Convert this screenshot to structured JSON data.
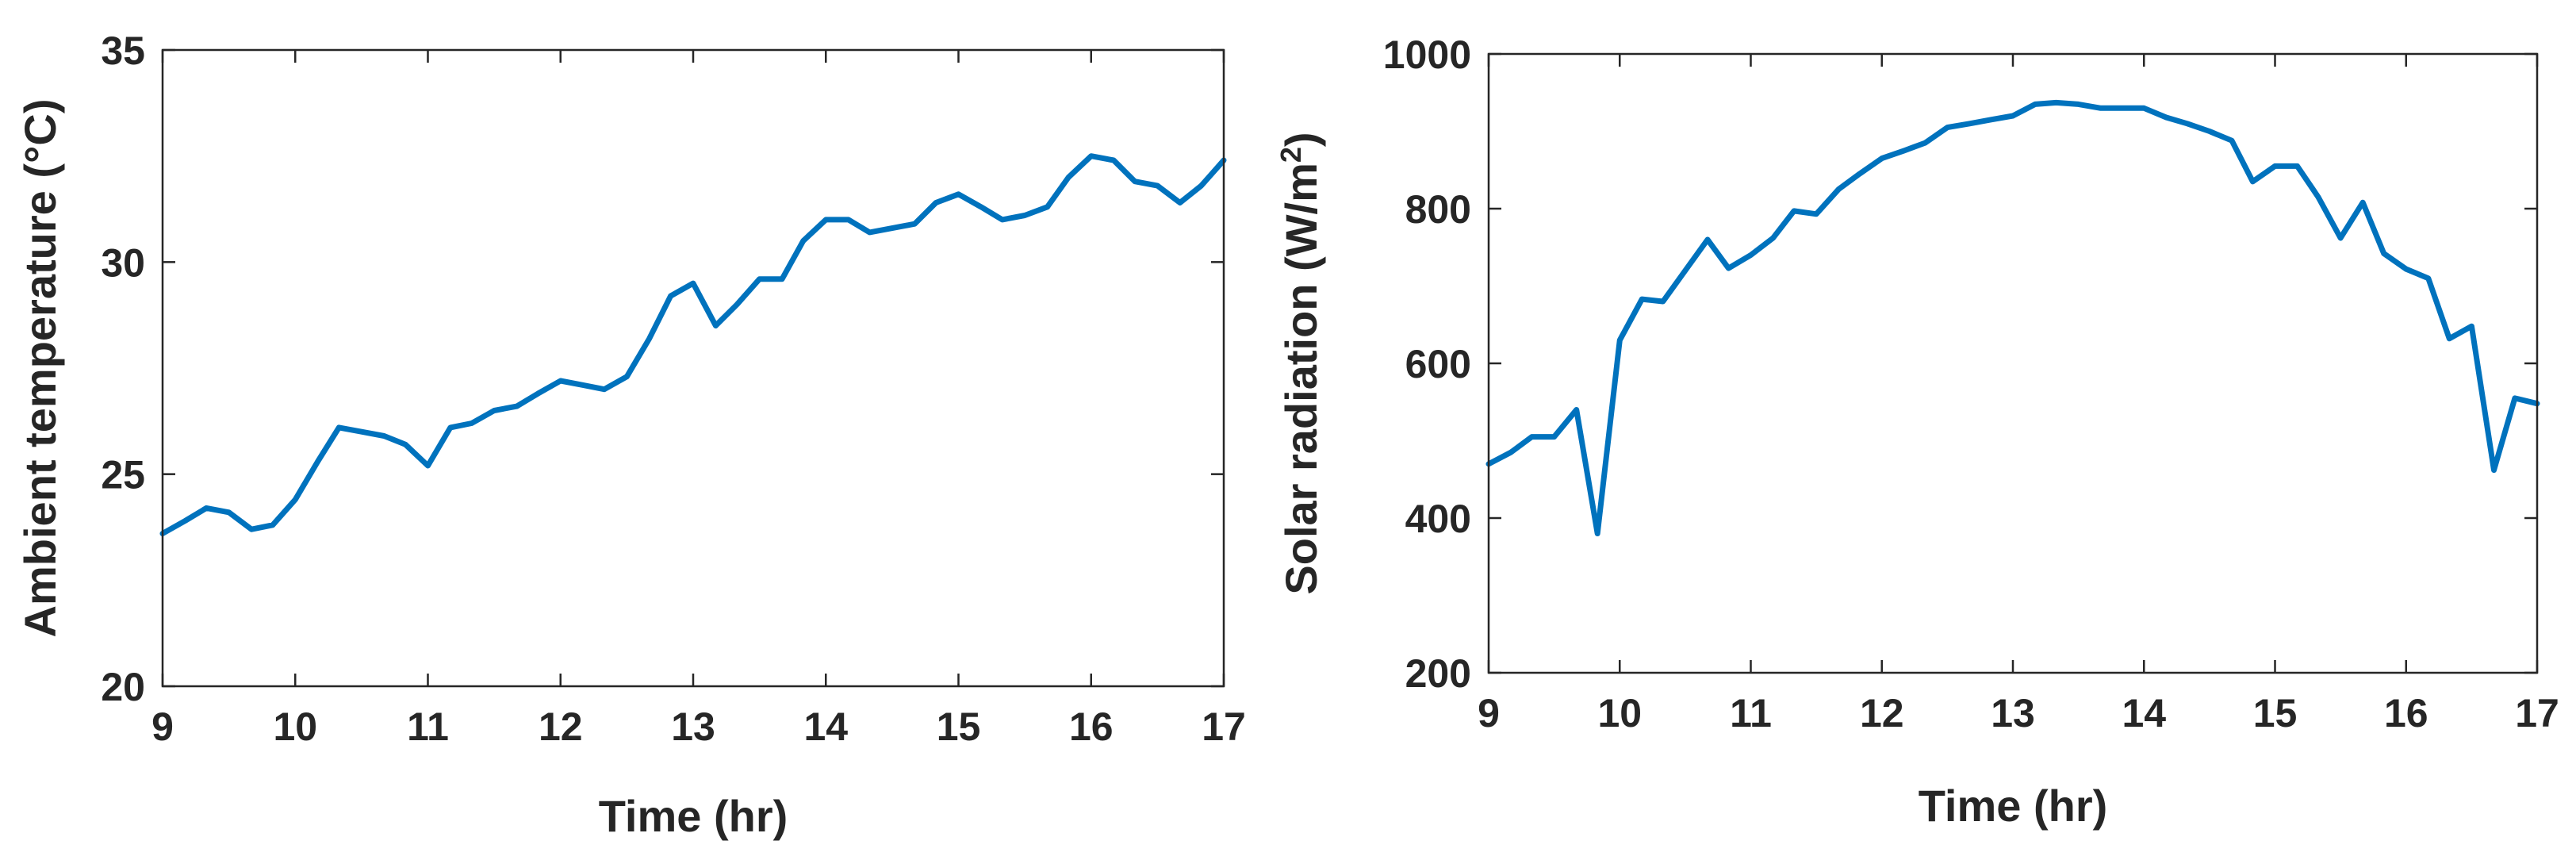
{
  "colors": {
    "series": "#0072BD",
    "axis": "#262626"
  },
  "chart_data": [
    {
      "type": "line",
      "xlabel": "Time (hr)",
      "ylabel": "Ambient temperature (°C)",
      "xlim": [
        9,
        17
      ],
      "ylim": [
        20,
        35
      ],
      "xticks": [
        "9",
        "10",
        "11",
        "12",
        "13",
        "14",
        "15",
        "16",
        "17"
      ],
      "yticks": [
        "20",
        "25",
        "30",
        "35"
      ],
      "grid": false,
      "series": [
        {
          "x": [
            9.0,
            9.17,
            9.33,
            9.5,
            9.67,
            9.83,
            10.0,
            10.17,
            10.33,
            10.5,
            10.67,
            10.83,
            11.0,
            11.17,
            11.33,
            11.5,
            11.67,
            11.83,
            12.0,
            12.17,
            12.33,
            12.5,
            12.67,
            12.83,
            13.0,
            13.17,
            13.33,
            13.5,
            13.67,
            13.83,
            14.0,
            14.17,
            14.33,
            14.5,
            14.67,
            14.83,
            15.0,
            15.17,
            15.33,
            15.5,
            15.67,
            15.83,
            16.0,
            16.17,
            16.33,
            16.5,
            16.67,
            16.83,
            17.0
          ],
          "y": [
            23.6,
            23.9,
            24.2,
            24.1,
            23.7,
            23.8,
            24.4,
            25.3,
            26.1,
            26.0,
            25.9,
            25.7,
            25.2,
            26.1,
            26.2,
            26.5,
            26.6,
            26.9,
            27.2,
            27.1,
            27.0,
            27.3,
            28.2,
            29.2,
            29.5,
            28.5,
            29.0,
            29.6,
            29.6,
            30.5,
            31.0,
            31.0,
            30.7,
            30.8,
            30.9,
            31.4,
            31.6,
            31.3,
            31.0,
            31.1,
            31.3,
            32.0,
            32.5,
            32.4,
            31.9,
            31.8,
            31.4,
            31.8,
            32.4
          ]
        }
      ]
    },
    {
      "type": "line",
      "xlabel": "Time (hr)",
      "ylabel": "Solar radiation (W/m",
      "ylabel_sup": "2",
      "ylabel_tail": ")",
      "xlim": [
        9,
        17
      ],
      "ylim": [
        200,
        1000
      ],
      "xticks": [
        "9",
        "10",
        "11",
        "12",
        "13",
        "14",
        "15",
        "16",
        "17"
      ],
      "yticks": [
        "200",
        "400",
        "600",
        "800",
        "1000"
      ],
      "grid": false,
      "series": [
        {
          "x": [
            9.0,
            9.17,
            9.33,
            9.5,
            9.67,
            9.83,
            10.0,
            10.17,
            10.33,
            10.5,
            10.67,
            10.83,
            11.0,
            11.17,
            11.33,
            11.5,
            11.67,
            11.83,
            12.0,
            12.17,
            12.33,
            12.5,
            12.67,
            12.83,
            13.0,
            13.17,
            13.33,
            13.5,
            13.67,
            13.83,
            14.0,
            14.17,
            14.33,
            14.5,
            14.67,
            14.83,
            15.0,
            15.17,
            15.33,
            15.5,
            15.67,
            15.83,
            16.0,
            16.17,
            16.33,
            16.5,
            16.67,
            16.83,
            17.0
          ],
          "y": [
            470,
            485,
            505,
            505,
            540,
            380,
            630,
            683,
            680,
            720,
            760,
            723,
            740,
            762,
            797,
            793,
            825,
            845,
            865,
            875,
            885,
            905,
            910,
            915,
            920,
            935,
            937,
            935,
            930,
            930,
            930,
            918,
            910,
            900,
            888,
            835,
            855,
            855,
            815,
            762,
            808,
            742,
            722,
            710,
            632,
            648,
            462,
            555,
            548
          ]
        }
      ]
    }
  ]
}
